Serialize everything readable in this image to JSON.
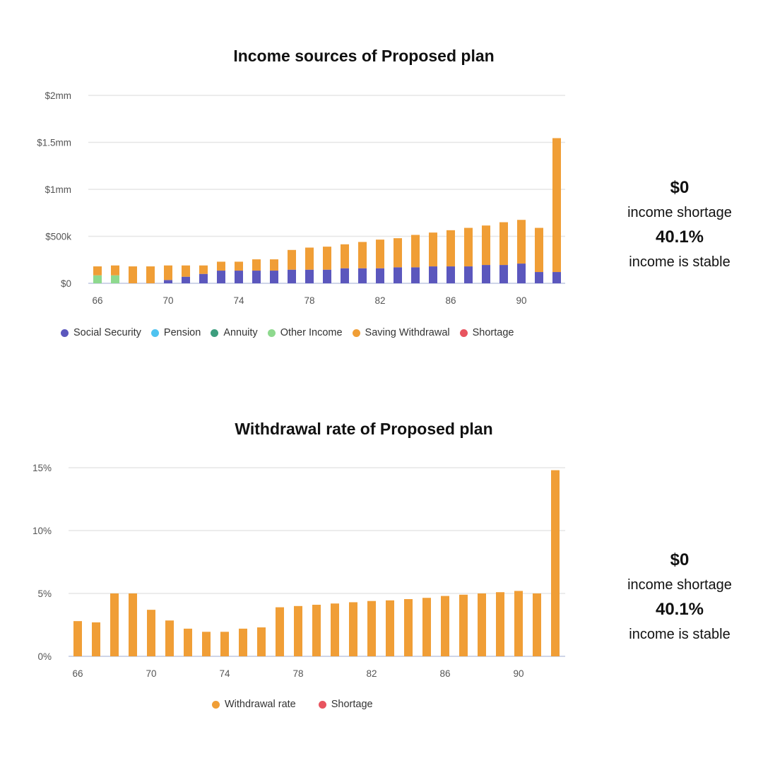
{
  "colors": {
    "social_security": "#5b57bd",
    "pension": "#4fc3f0",
    "annuity": "#3d9e7e",
    "other_income": "#8ed98e",
    "saving_withdrawal": "#f09e36",
    "shortage": "#e8545f",
    "withdrawal_rate": "#f09e36"
  },
  "chart_data": [
    {
      "type": "bar",
      "stacked": true,
      "title": "Income sources of Proposed plan",
      "xlabel": "",
      "ylabel": "",
      "ylim": [
        0,
        2000000
      ],
      "yticks": [
        {
          "value": 0,
          "label": "$0"
        },
        {
          "value": 500000,
          "label": "$500k"
        },
        {
          "value": 1000000,
          "label": "$1mm"
        },
        {
          "value": 1500000,
          "label": "$1.5mm"
        },
        {
          "value": 2000000,
          "label": "$2mm"
        }
      ],
      "xticks": [
        "66",
        "70",
        "74",
        "78",
        "82",
        "86",
        "90"
      ],
      "categories": [
        66,
        67,
        68,
        69,
        70,
        71,
        72,
        73,
        74,
        75,
        76,
        77,
        78,
        79,
        80,
        81,
        82,
        83,
        84,
        85,
        86,
        87,
        88,
        89,
        90,
        91,
        92
      ],
      "grid": true,
      "legend_position": "bottom",
      "series": [
        {
          "name": "Social Security",
          "color_key": "social_security",
          "values": [
            0,
            0,
            0,
            0,
            35000,
            70000,
            100000,
            135000,
            135000,
            135000,
            135000,
            145000,
            145000,
            145000,
            160000,
            160000,
            160000,
            170000,
            170000,
            180000,
            180000,
            180000,
            195000,
            195000,
            210000,
            120000,
            120000
          ]
        },
        {
          "name": "Pension",
          "color_key": "pension",
          "values": [
            0,
            0,
            0,
            0,
            0,
            0,
            0,
            0,
            0,
            0,
            0,
            0,
            0,
            0,
            0,
            0,
            0,
            0,
            0,
            0,
            0,
            0,
            0,
            0,
            0,
            0,
            0
          ]
        },
        {
          "name": "Annuity",
          "color_key": "annuity",
          "values": [
            0,
            0,
            0,
            0,
            0,
            0,
            0,
            0,
            0,
            0,
            0,
            0,
            0,
            0,
            0,
            0,
            0,
            0,
            0,
            0,
            0,
            0,
            0,
            0,
            0,
            0,
            0
          ]
        },
        {
          "name": "Other Income",
          "color_key": "other_income",
          "values": [
            85000,
            85000,
            0,
            0,
            0,
            0,
            0,
            0,
            0,
            0,
            0,
            0,
            0,
            0,
            0,
            0,
            0,
            0,
            0,
            0,
            0,
            0,
            0,
            0,
            0,
            0,
            0
          ]
        },
        {
          "name": "Saving Withdrawal",
          "color_key": "saving_withdrawal",
          "values": [
            95000,
            105000,
            180000,
            180000,
            155000,
            120000,
            90000,
            95000,
            95000,
            120000,
            120000,
            210000,
            235000,
            245000,
            255000,
            280000,
            305000,
            310000,
            345000,
            360000,
            385000,
            410000,
            420000,
            455000,
            465000,
            470000,
            1425000
          ]
        },
        {
          "name": "Shortage",
          "color_key": "shortage",
          "values": [
            0,
            0,
            0,
            0,
            0,
            0,
            0,
            0,
            0,
            0,
            0,
            0,
            0,
            0,
            0,
            0,
            0,
            0,
            0,
            0,
            0,
            0,
            0,
            0,
            0,
            0,
            0
          ]
        }
      ]
    },
    {
      "type": "bar",
      "title": "Withdrawal rate of Proposed plan",
      "xlabel": "",
      "ylabel": "",
      "ylim": [
        0,
        15
      ],
      "yticks": [
        {
          "value": 0,
          "label": "0%"
        },
        {
          "value": 5,
          "label": "5%"
        },
        {
          "value": 10,
          "label": "10%"
        },
        {
          "value": 15,
          "label": "15%"
        }
      ],
      "xticks": [
        "66",
        "70",
        "74",
        "78",
        "82",
        "86",
        "90"
      ],
      "categories": [
        66,
        67,
        68,
        69,
        70,
        71,
        72,
        73,
        74,
        75,
        76,
        77,
        78,
        79,
        80,
        81,
        82,
        83,
        84,
        85,
        86,
        87,
        88,
        89,
        90,
        91,
        92
      ],
      "grid": true,
      "legend_position": "bottom",
      "series": [
        {
          "name": "Withdrawal rate",
          "color_key": "withdrawal_rate",
          "values": [
            2.8,
            2.7,
            5.0,
            5.0,
            3.7,
            2.85,
            2.2,
            1.95,
            1.95,
            2.2,
            2.3,
            3.9,
            4.0,
            4.1,
            4.2,
            4.3,
            4.4,
            4.45,
            4.55,
            4.65,
            4.8,
            4.9,
            5.0,
            5.1,
            5.2,
            5.0,
            14.8
          ]
        },
        {
          "name": "Shortage",
          "color_key": "shortage",
          "values": [
            0,
            0,
            0,
            0,
            0,
            0,
            0,
            0,
            0,
            0,
            0,
            0,
            0,
            0,
            0,
            0,
            0,
            0,
            0,
            0,
            0,
            0,
            0,
            0,
            0,
            0,
            0
          ]
        }
      ]
    }
  ],
  "summary": [
    {
      "shortage_value": "$0",
      "shortage_label": "income shortage",
      "stable_value": "40.1%",
      "stable_label": "income is stable"
    },
    {
      "shortage_value": "$0",
      "shortage_label": "income shortage",
      "stable_value": "40.1%",
      "stable_label": "income is stable"
    }
  ]
}
